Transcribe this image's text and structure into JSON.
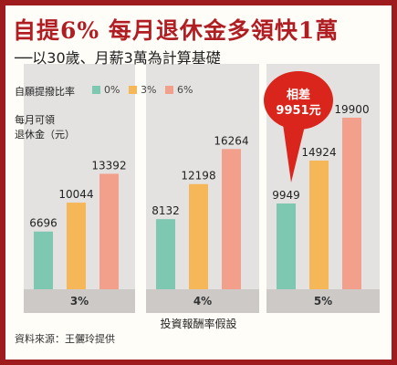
{
  "title": "自提6%  每月退休金多領快1萬",
  "subtitle": "──以30歲、月薪3萬為計算基礎",
  "legend": {
    "title": "自願提撥比率",
    "items": [
      {
        "label": "0%",
        "color": "#7ec8b2"
      },
      {
        "label": "3%",
        "color": "#f6b758"
      },
      {
        "label": "6%",
        "color": "#f2a08c"
      }
    ]
  },
  "callout": {
    "line1": "相差",
    "line2": "9951元",
    "color": "#d9251c"
  },
  "source": "資料來源：王儷玲提供",
  "colors": {
    "frame": "#9e1b1e",
    "title": "#b01e23",
    "panel": "#e3e2e1",
    "axis_band": "#ccc9c7"
  },
  "chart_data": {
    "type": "bar",
    "categories": [
      "3%",
      "4%",
      "5%"
    ],
    "xlabel": "投資報酬率假設",
    "ylabel": "每月可領\n退休金（元）",
    "ylim": [
      0,
      20000
    ],
    "series": [
      {
        "name": "0%",
        "values": [
          6696,
          8132,
          9949
        ]
      },
      {
        "name": "3%",
        "values": [
          10044,
          12198,
          14924
        ]
      },
      {
        "name": "6%",
        "values": [
          13392,
          16264,
          19900
        ]
      }
    ],
    "data_labels": true,
    "grid": false,
    "legend_position": "top-left"
  }
}
